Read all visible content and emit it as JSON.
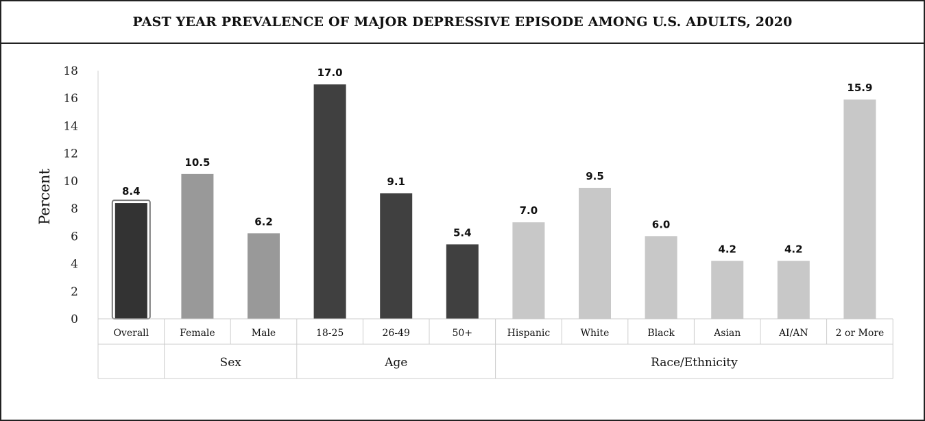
{
  "chart_data": {
    "type": "bar",
    "title": "PAST YEAR PREVALENCE OF MAJOR DEPRESSIVE EPISODE AMONG U.S. ADULTS, 2020",
    "xlabel": "",
    "ylabel": "Percent",
    "ylim": [
      0,
      18
    ],
    "yticks": [
      "0",
      "2",
      "4",
      "6",
      "8",
      "10",
      "12",
      "14",
      "16",
      "18"
    ],
    "grid": false,
    "categories": [
      "Overall",
      "Female",
      "Male",
      "18-25",
      "26-49",
      "50+",
      "Hispanic",
      "White",
      "Black",
      "Asian",
      "AI/AN",
      "2 or More"
    ],
    "values": [
      8.4,
      10.5,
      6.2,
      17.0,
      9.1,
      5.4,
      7.0,
      9.5,
      6.0,
      4.2,
      4.2,
      15.9
    ],
    "value_labels": [
      "8.4",
      "10.5",
      "6.2",
      "17.0",
      "9.1",
      "5.4",
      "7.0",
      "9.5",
      "6.0",
      "4.2",
      "4.2",
      "15.9"
    ],
    "bar_colors": [
      "#333333",
      "#999999",
      "#999999",
      "#404040",
      "#404040",
      "#404040",
      "#c8c8c8",
      "#c8c8c8",
      "#c8c8c8",
      "#c8c8c8",
      "#c8c8c8",
      "#c8c8c8"
    ],
    "highlight_color": "#777777",
    "groups": [
      {
        "label": "",
        "start": 0,
        "end": 0
      },
      {
        "label": "Sex",
        "start": 1,
        "end": 2
      },
      {
        "label": "Age",
        "start": 3,
        "end": 5
      },
      {
        "label": "Race/Ethnicity",
        "start": 6,
        "end": 11
      }
    ]
  }
}
